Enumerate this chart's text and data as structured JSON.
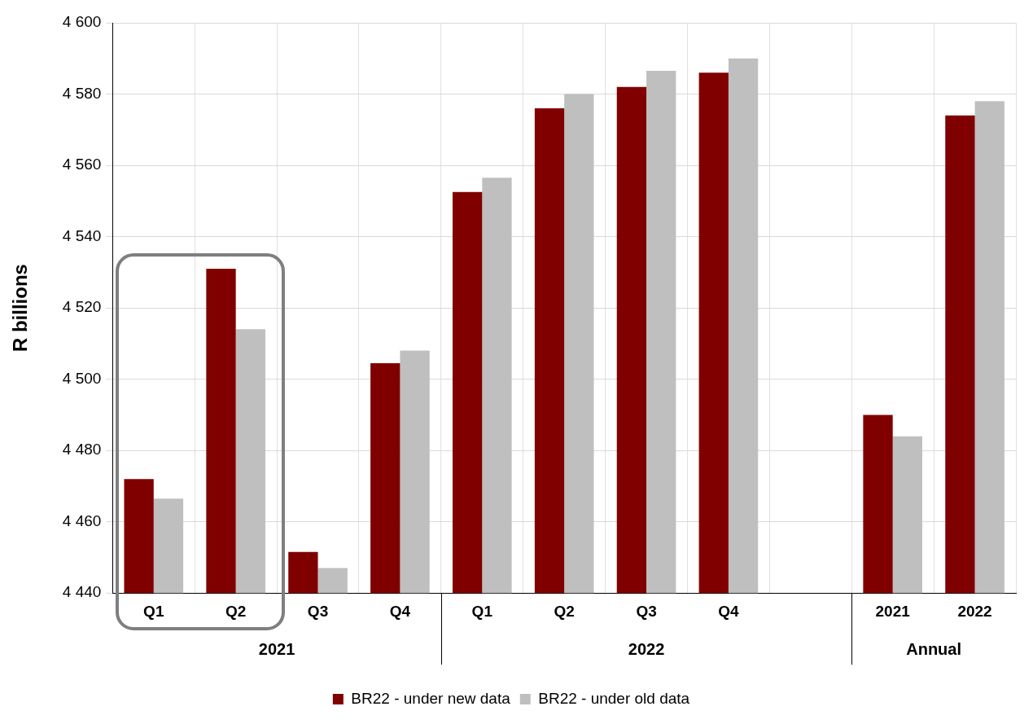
{
  "chart_data": {
    "type": "bar",
    "ylabel": "R billions",
    "categories": [
      "Q1",
      "Q2",
      "Q3",
      "Q4",
      "Q1",
      "Q2",
      "Q3",
      "Q4",
      null,
      "2021",
      "2022"
    ],
    "annotations": [
      "2021",
      "2022",
      "Annual"
    ],
    "series": [
      {
        "name": "BR22 - under new data",
        "color": "#800000",
        "values": [
          4472,
          4531,
          4451.5,
          4504.5,
          4552.5,
          4576,
          4582,
          4586,
          null,
          4490,
          4574
        ]
      },
      {
        "name": "BR22 - under old data",
        "color": "#bfbfbf",
        "values": [
          4466.5,
          4514,
          4447,
          4508,
          4556.5,
          4580,
          4586.5,
          4590,
          null,
          4484,
          4578
        ]
      }
    ],
    "ylim": [
      4440,
      4600
    ],
    "yticks": [
      {
        "value": 4440,
        "label": "4 440"
      },
      {
        "value": 4460,
        "label": "4 460"
      },
      {
        "value": 4480,
        "label": "4 480"
      },
      {
        "value": 4500,
        "label": "4 500"
      },
      {
        "value": 4520,
        "label": "4 520"
      },
      {
        "value": 4540,
        "label": "4 540"
      },
      {
        "value": 4560,
        "label": "4 560"
      },
      {
        "value": 4580,
        "label": "4 580"
      },
      {
        "value": 4600,
        "label": "4 600"
      }
    ],
    "grid": true,
    "legend": "bottom"
  }
}
